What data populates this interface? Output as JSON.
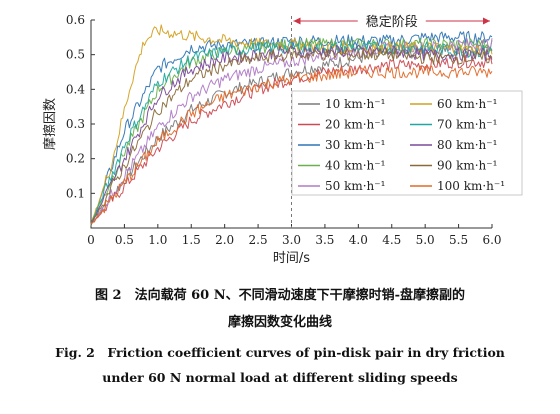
{
  "chart_data": {
    "type": "line",
    "title": "",
    "xlabel": "时间/s",
    "ylabel": "摩擦因数",
    "xlim": [
      0,
      6.0
    ],
    "ylim": [
      0,
      0.6
    ],
    "x_ticks": [
      "0",
      "0.5",
      "1.0",
      "1.5",
      "2.0",
      "2.5",
      "3.0",
      "3.5",
      "4.0",
      "4.5",
      "5.0",
      "5.5",
      "6.0"
    ],
    "y_ticks": [
      "0.1",
      "0.2",
      "0.3",
      "0.4",
      "0.5",
      "0.6"
    ],
    "grid": false,
    "legend_position": "center-right",
    "annotation": {
      "label": "稳定阶段",
      "x_start": 3.0,
      "x_end": 6.0
    },
    "series": [
      {
        "name": "10 km·h⁻¹",
        "color": "#7a7a7a",
        "points": [
          [
            0,
            0.01
          ],
          [
            0.5,
            0.14
          ],
          [
            1.0,
            0.26
          ],
          [
            1.5,
            0.34
          ],
          [
            2.0,
            0.39
          ],
          [
            2.5,
            0.42
          ],
          [
            3.0,
            0.45
          ],
          [
            3.5,
            0.47
          ],
          [
            4.0,
            0.49
          ],
          [
            4.5,
            0.5
          ],
          [
            5.0,
            0.51
          ],
          [
            5.5,
            0.52
          ],
          [
            6.0,
            0.53
          ]
        ]
      },
      {
        "name": "20 km·h⁻¹",
        "color": "#cc4a52",
        "points": [
          [
            0,
            0.01
          ],
          [
            0.5,
            0.12
          ],
          [
            1.0,
            0.23
          ],
          [
            1.5,
            0.31
          ],
          [
            2.0,
            0.36
          ],
          [
            2.5,
            0.4
          ],
          [
            3.0,
            0.43
          ],
          [
            3.5,
            0.45
          ],
          [
            4.0,
            0.46
          ],
          [
            4.5,
            0.47
          ],
          [
            5.0,
            0.47
          ],
          [
            5.5,
            0.48
          ],
          [
            6.0,
            0.48
          ]
        ]
      },
      {
        "name": "30 km·h⁻¹",
        "color": "#2f75b5",
        "points": [
          [
            0,
            0.01
          ],
          [
            0.5,
            0.28
          ],
          [
            1.0,
            0.46
          ],
          [
            1.5,
            0.52
          ],
          [
            2.0,
            0.53
          ],
          [
            2.5,
            0.53
          ],
          [
            3.0,
            0.54
          ],
          [
            3.5,
            0.54
          ],
          [
            4.0,
            0.54
          ],
          [
            4.5,
            0.54
          ],
          [
            5.0,
            0.55
          ],
          [
            5.5,
            0.55
          ],
          [
            6.0,
            0.55
          ]
        ]
      },
      {
        "name": "40 km·h⁻¹",
        "color": "#6ab04c",
        "points": [
          [
            0,
            0.01
          ],
          [
            0.5,
            0.22
          ],
          [
            1.0,
            0.4
          ],
          [
            1.5,
            0.48
          ],
          [
            2.0,
            0.51
          ],
          [
            2.5,
            0.52
          ],
          [
            3.0,
            0.53
          ],
          [
            3.5,
            0.53
          ],
          [
            4.0,
            0.53
          ],
          [
            4.5,
            0.53
          ],
          [
            5.0,
            0.53
          ],
          [
            5.5,
            0.53
          ],
          [
            6.0,
            0.53
          ]
        ]
      },
      {
        "name": "50 km·h⁻¹",
        "color": "#b07cc6",
        "points": [
          [
            0,
            0.01
          ],
          [
            0.5,
            0.15
          ],
          [
            1.0,
            0.29
          ],
          [
            1.5,
            0.38
          ],
          [
            2.0,
            0.43
          ],
          [
            2.5,
            0.46
          ],
          [
            3.0,
            0.48
          ],
          [
            3.5,
            0.5
          ],
          [
            4.0,
            0.51
          ],
          [
            4.5,
            0.52
          ],
          [
            5.0,
            0.52
          ],
          [
            5.5,
            0.53
          ],
          [
            6.0,
            0.53
          ]
        ]
      },
      {
        "name": "60 km·h⁻¹",
        "color": "#d4a020",
        "points": [
          [
            0,
            0.01
          ],
          [
            0.3,
            0.18
          ],
          [
            0.6,
            0.42
          ],
          [
            0.8,
            0.54
          ],
          [
            1.0,
            0.57
          ],
          [
            1.3,
            0.56
          ],
          [
            1.6,
            0.55
          ],
          [
            2.0,
            0.54
          ],
          [
            2.5,
            0.53
          ],
          [
            3.0,
            0.53
          ],
          [
            3.5,
            0.52
          ],
          [
            4.0,
            0.52
          ],
          [
            5.0,
            0.52
          ],
          [
            6.0,
            0.51
          ]
        ]
      },
      {
        "name": "70 km·h⁻¹",
        "color": "#20a8a0",
        "points": [
          [
            0,
            0.01
          ],
          [
            0.5,
            0.24
          ],
          [
            1.0,
            0.42
          ],
          [
            1.5,
            0.49
          ],
          [
            2.0,
            0.51
          ],
          [
            2.5,
            0.52
          ],
          [
            3.0,
            0.52
          ],
          [
            3.5,
            0.52
          ],
          [
            4.0,
            0.52
          ],
          [
            4.5,
            0.52
          ],
          [
            5.0,
            0.52
          ],
          [
            5.5,
            0.51
          ],
          [
            6.0,
            0.51
          ]
        ]
      },
      {
        "name": "80 km·h⁻¹",
        "color": "#7a4a9a",
        "points": [
          [
            0,
            0.01
          ],
          [
            0.5,
            0.2
          ],
          [
            1.0,
            0.38
          ],
          [
            1.5,
            0.46
          ],
          [
            2.0,
            0.49
          ],
          [
            2.5,
            0.5
          ],
          [
            3.0,
            0.51
          ],
          [
            3.5,
            0.51
          ],
          [
            4.0,
            0.51
          ],
          [
            4.5,
            0.51
          ],
          [
            5.0,
            0.5
          ],
          [
            5.5,
            0.5
          ],
          [
            6.0,
            0.5
          ]
        ]
      },
      {
        "name": "90 km·h⁻¹",
        "color": "#8a6a3a",
        "points": [
          [
            0,
            0.01
          ],
          [
            0.5,
            0.18
          ],
          [
            1.0,
            0.34
          ],
          [
            1.5,
            0.43
          ],
          [
            2.0,
            0.47
          ],
          [
            2.5,
            0.49
          ],
          [
            3.0,
            0.5
          ],
          [
            3.5,
            0.5
          ],
          [
            4.0,
            0.5
          ],
          [
            4.5,
            0.5
          ],
          [
            5.0,
            0.49
          ],
          [
            5.5,
            0.49
          ],
          [
            6.0,
            0.49
          ]
        ]
      },
      {
        "name": "100 km·h⁻¹",
        "color": "#e06a2a",
        "points": [
          [
            0,
            0.01
          ],
          [
            0.5,
            0.13
          ],
          [
            1.0,
            0.25
          ],
          [
            1.5,
            0.33
          ],
          [
            2.0,
            0.38
          ],
          [
            2.5,
            0.41
          ],
          [
            3.0,
            0.43
          ],
          [
            3.5,
            0.44
          ],
          [
            4.0,
            0.45
          ],
          [
            4.5,
            0.45
          ],
          [
            5.0,
            0.45
          ],
          [
            5.5,
            0.45
          ],
          [
            6.0,
            0.45
          ]
        ]
      }
    ]
  },
  "caption": {
    "zh_line1": "图 2　法向载荷 60 N、不同滑动速度下干摩擦时销-盘摩擦副的",
    "zh_line2": "摩擦因数变化曲线",
    "en_line1": "Fig. 2　Friction coefficient curves of pin-disk pair in dry friction",
    "en_line2": "under 60 N normal load at different sliding speeds"
  }
}
